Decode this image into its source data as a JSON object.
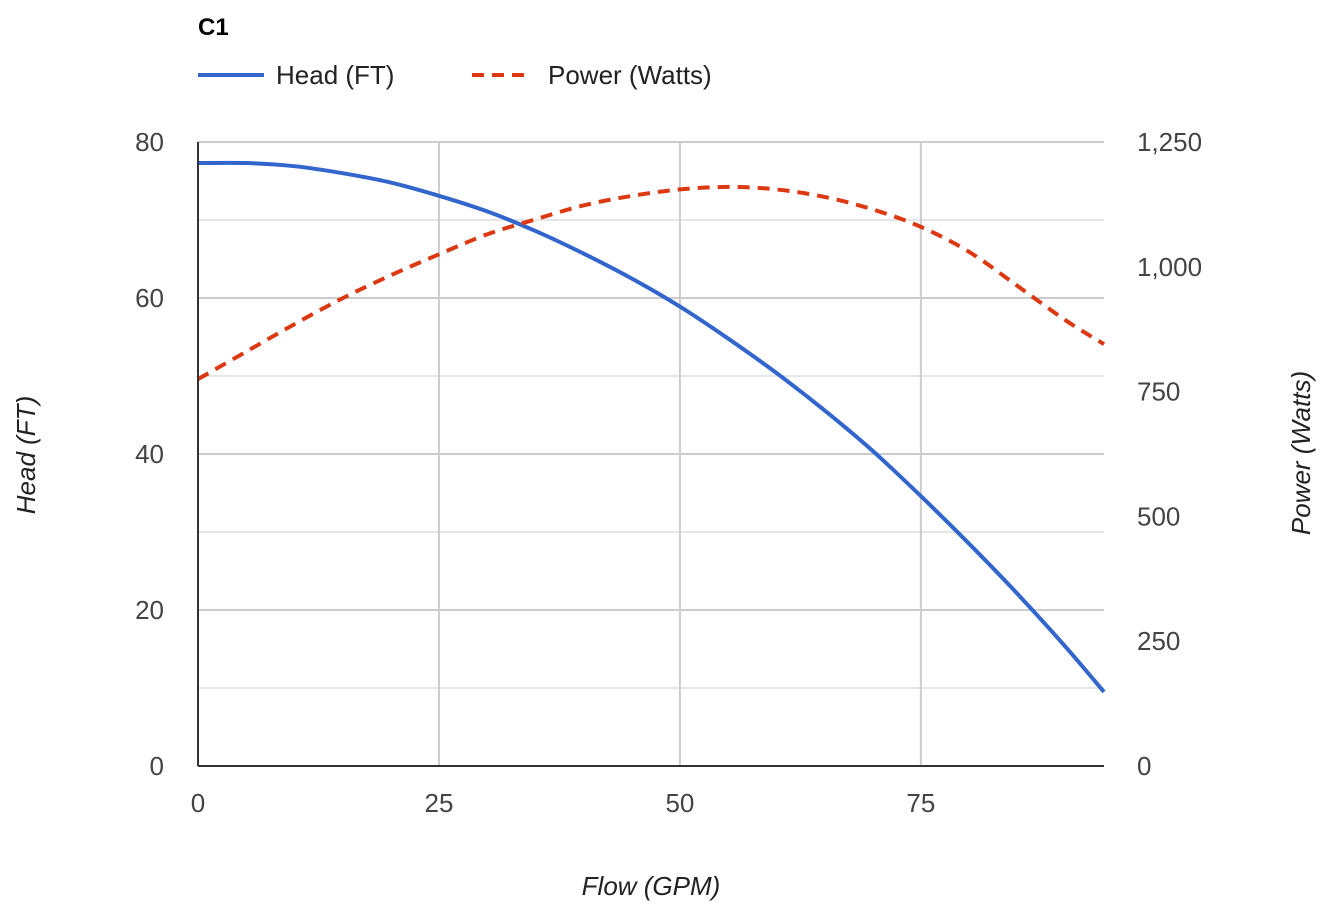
{
  "chart_data": {
    "type": "line",
    "title": "C1",
    "xlabel": "Flow (GPM)",
    "ylabel_left": "Head (FT)",
    "ylabel_right": "Power (Watts)",
    "xlim": [
      0,
      94
    ],
    "ylim_left": [
      0,
      80
    ],
    "ylim_right": [
      0,
      1250
    ],
    "x_ticks": [
      0,
      25,
      50,
      75
    ],
    "x_tick_labels": [
      "0",
      "25",
      "50",
      "75"
    ],
    "y_left_ticks": [
      0,
      20,
      40,
      60,
      80
    ],
    "y_left_tick_labels": [
      "0",
      "20",
      "40",
      "60",
      "80"
    ],
    "y_right_ticks": [
      0,
      250,
      500,
      750,
      1000,
      1250
    ],
    "y_right_tick_labels": [
      "0",
      "250",
      "500",
      "750",
      "1,000",
      "1,250"
    ],
    "grid": true,
    "legend_position": "top-left",
    "series": [
      {
        "name": "Head (FT)",
        "axis": "left",
        "color": "#3366cc",
        "style": "solid",
        "x": [
          0,
          5,
          10,
          15,
          20,
          25,
          30,
          35,
          40,
          45,
          50,
          55,
          60,
          65,
          70,
          75,
          80,
          85,
          90,
          94
        ],
        "values": [
          77.3,
          77.3,
          76.9,
          76.0,
          74.8,
          73.1,
          71.1,
          68.6,
          65.7,
          62.5,
          58.9,
          54.8,
          50.4,
          45.6,
          40.4,
          34.6,
          28.5,
          22.1,
          15.3,
          9.5
        ]
      },
      {
        "name": "Power (Watts)",
        "axis": "right",
        "color": "#dc3912",
        "style": "dashed",
        "x": [
          0,
          5,
          10,
          15,
          20,
          25,
          30,
          35,
          40,
          45,
          50,
          55,
          60,
          65,
          70,
          75,
          80,
          85,
          90,
          94
        ],
        "values": [
          775,
          830,
          885,
          937,
          983,
          1025,
          1065,
          1095,
          1123,
          1142,
          1155,
          1160,
          1155,
          1140,
          1115,
          1080,
          1030,
          962,
          893,
          845
        ]
      }
    ]
  }
}
